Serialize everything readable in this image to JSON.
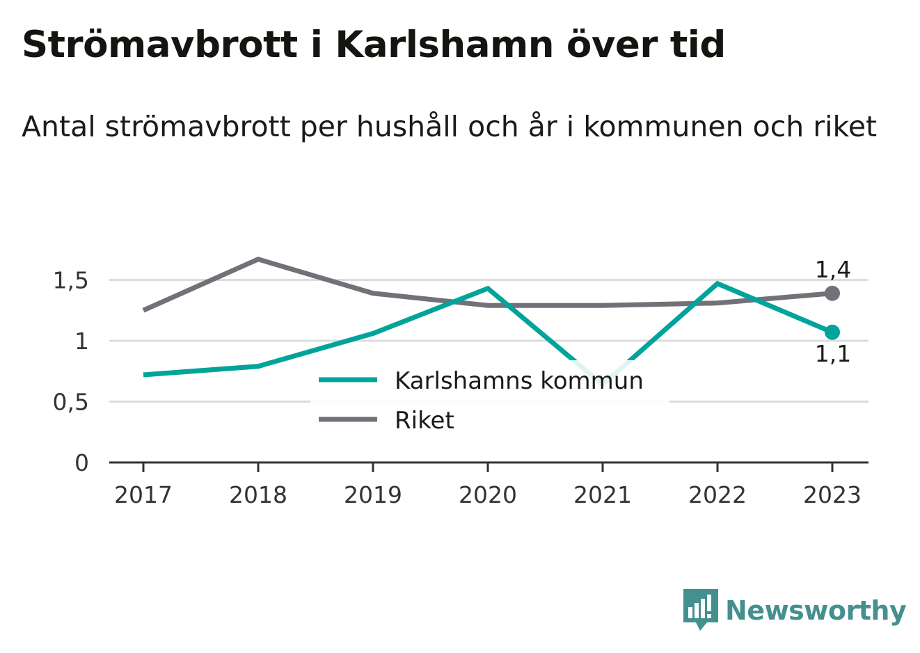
{
  "title": "Strömavbrott i Karlshamn över tid",
  "subtitle": "Antal strömavbrott per hushåll och år i kommunen och riket",
  "brand": {
    "name": "Newsworthy",
    "icon": "bar-chart-speech-bubble-icon"
  },
  "colors": {
    "kommun": "#00a49a",
    "riket": "#727178",
    "grid": "#dcdcdc",
    "axis": "#333333",
    "brand": "#44908f"
  },
  "chart_data": {
    "type": "line",
    "categories": [
      "2017",
      "2018",
      "2019",
      "2020",
      "2021",
      "2022",
      "2023"
    ],
    "series": [
      {
        "name": "Karlshamns kommun",
        "color": "#00a49a",
        "values": [
          0.72,
          0.79,
          1.06,
          1.43,
          0.64,
          1.47,
          1.07
        ],
        "end_label": "1,1"
      },
      {
        "name": "Riket",
        "color": "#727178",
        "values": [
          1.25,
          1.67,
          1.39,
          1.29,
          1.29,
          1.31,
          1.39
        ],
        "end_label": "1,4"
      }
    ],
    "y_ticks": [
      {
        "value": 0,
        "label": "0"
      },
      {
        "value": 0.5,
        "label": "0,5"
      },
      {
        "value": 1,
        "label": "1"
      },
      {
        "value": 1.5,
        "label": "1,5"
      }
    ],
    "ylim": [
      0,
      1.7
    ],
    "grid": true,
    "legend_position": "center"
  }
}
